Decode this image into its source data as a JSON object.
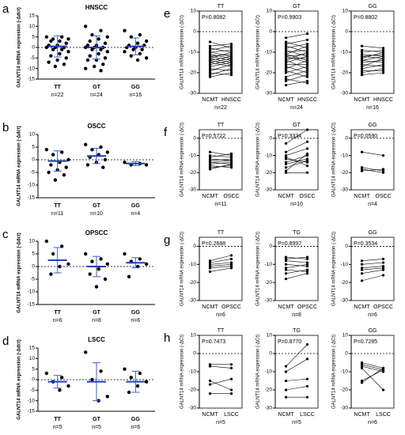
{
  "chart_data": [
    {
      "type": "dot",
      "label": "a",
      "title": "HNSCC",
      "ylabel": "GALNT14 mRNA expression (-Δdct)",
      "categories": [
        "TT",
        "GT",
        "GG"
      ],
      "n_labels": [
        "n=22",
        "n=24",
        "n=16"
      ],
      "points": [
        [
          5,
          5,
          4,
          4,
          3,
          3,
          2,
          1,
          1,
          0,
          0,
          0,
          -1,
          -1,
          -2,
          -3,
          -4,
          -5,
          -6,
          -7,
          -8,
          -9
        ],
        [
          10,
          8,
          6,
          5,
          4,
          3,
          2,
          1,
          1,
          0,
          0,
          0,
          -1,
          -1,
          -2,
          -3,
          -4,
          -5,
          -6,
          -6,
          -8,
          -9,
          -10,
          -11
        ],
        [
          8,
          6,
          5,
          3,
          2,
          1,
          1,
          0,
          0,
          -1,
          -1,
          -2,
          -3,
          -4,
          -5,
          -6
        ]
      ],
      "mean": [
        0.5,
        0,
        0.5
      ],
      "sd": [
        5,
        5.5,
        4
      ],
      "ylim": [
        -15,
        15
      ],
      "yticks": [
        -15,
        -10,
        -5,
        0,
        5,
        10,
        15
      ]
    },
    {
      "type": "dot",
      "label": "b",
      "title": "OSCC",
      "ylabel": "GALNT14 mRNA expression (-Δdct)",
      "categories": [
        "TT",
        "GT",
        "GG"
      ],
      "n_labels": [
        "n=11",
        "n=10",
        "n=4"
      ],
      "points": [
        [
          4,
          3,
          2,
          0,
          -1,
          -2,
          -3,
          -4,
          -5,
          -6,
          -8
        ],
        [
          6,
          5,
          4,
          3,
          2,
          1,
          0,
          -1,
          -2,
          -3
        ],
        [
          -1,
          -1.5,
          -2,
          -2
        ]
      ],
      "mean": [
        -0.5,
        1.5,
        -1.5
      ],
      "sd": [
        4,
        3,
        0.8
      ],
      "ylim": [
        -15,
        10
      ],
      "yticks": [
        -15,
        -10,
        -5,
        0,
        5,
        10
      ]
    },
    {
      "type": "dot",
      "label": "c",
      "title": "OPSCC",
      "ylabel": "GALNT14 mRNA expression (-Δdct)",
      "categories": [
        "TT",
        "GT",
        "GG"
      ],
      "n_labels": [
        "n=6",
        "n=8",
        "n=6"
      ],
      "points": [
        [
          10,
          8,
          5,
          1,
          0,
          -3
        ],
        [
          5,
          3,
          2,
          1,
          -1,
          -3,
          -5,
          -8
        ],
        [
          5,
          3,
          2,
          1,
          0,
          -4
        ]
      ],
      "mean": [
        2.5,
        0,
        1.5
      ],
      "sd": [
        5,
        4,
        2
      ],
      "ylim": [
        -15,
        10
      ],
      "yticks": [
        -15,
        -10,
        -5,
        0,
        5,
        10
      ]
    },
    {
      "type": "dot",
      "label": "d",
      "title": "LSCC",
      "ylabel": "GALNT14 mRNA expression (-Δdct)",
      "categories": [
        "TT",
        "GT",
        "GG"
      ],
      "n_labels": [
        "n=5",
        "n=5",
        "n=6"
      ],
      "points": [
        [
          3,
          1,
          -1,
          -3,
          -5
        ],
        [
          13,
          4,
          0,
          -8,
          -10
        ],
        [
          5,
          3,
          1,
          -1,
          -3,
          -6
        ]
      ],
      "mean": [
        -1,
        -1,
        -1
      ],
      "sd": [
        3,
        9,
        5
      ],
      "ylim": [
        -15,
        15
      ],
      "yticks": [
        -15,
        -10,
        -5,
        0,
        5,
        10,
        15
      ]
    },
    {
      "type": "paired",
      "label": "e",
      "ylabel": "GALNT14 mRNA expression (-ΔCt)",
      "categories": [
        "NCMT",
        "HNSCC"
      ],
      "ylim": [
        -30,
        10
      ],
      "yticks": [
        -30,
        -20,
        -10,
        0,
        10
      ],
      "subplots": [
        {
          "title": "TT",
          "p": "P=0.8082",
          "n": "n=22",
          "ncmt": [
            -5,
            -7,
            -8,
            -9,
            -10,
            -10,
            -11,
            -12,
            -12,
            -13,
            -13,
            -14,
            -14,
            -15,
            -15,
            -16,
            -17,
            -18,
            -19,
            -20,
            -21,
            -22
          ],
          "tumor": [
            -8,
            -6,
            -10,
            -7,
            -12,
            -9,
            -13,
            -11,
            -14,
            -10,
            -15,
            -12,
            -16,
            -13,
            -17,
            -14,
            -15,
            -19,
            -16,
            -21,
            -18,
            -20
          ]
        },
        {
          "title": "GT",
          "p": "P=0.9903",
          "n": "n=24",
          "ncmt": [
            -3,
            -5,
            -6,
            -7,
            -8,
            -9,
            -10,
            -11,
            -11,
            -12,
            -12,
            -13,
            -14,
            -14,
            -15,
            -16,
            -17,
            -18,
            -19,
            -20,
            -22,
            -23,
            -24,
            -26
          ],
          "tumor": [
            -1,
            -8,
            -4,
            -10,
            -6,
            -12,
            -9,
            -14,
            -7,
            -15,
            -11,
            -13,
            -10,
            -18,
            -12,
            -16,
            -20,
            -14,
            -22,
            -17,
            -19,
            -25,
            -21,
            -24
          ]
        },
        {
          "title": "GG",
          "p": "P=0.8802",
          "n": "n=16",
          "ncmt": [
            -7,
            -9,
            -10,
            -11,
            -12,
            -12,
            -13,
            -14,
            -14,
            -15,
            -16,
            -17,
            -18,
            -19,
            -20,
            -21
          ],
          "tumor": [
            -8,
            -10,
            -9,
            -12,
            -11,
            -13,
            -10,
            -15,
            -12,
            -14,
            -17,
            -13,
            -16,
            -19,
            -18,
            -20
          ]
        }
      ]
    },
    {
      "type": "paired",
      "label": "f",
      "ylabel": "GALNT14 mRNA expression (-ΔCt)",
      "categories": [
        "NCMT",
        "OSCC"
      ],
      "ylim": [
        -30,
        5
      ],
      "yticks": [
        -30,
        -20,
        -10,
        0
      ],
      "subplots": [
        {
          "title": "TT",
          "p": "P=0.5722",
          "n": "n=11",
          "ncmt": [
            -8,
            -10,
            -11,
            -12,
            -13,
            -14,
            -14,
            -15,
            -16,
            -17,
            -18
          ],
          "tumor": [
            -10,
            -11,
            -9,
            -13,
            -12,
            -15,
            -13,
            -14,
            -17,
            -16,
            -15
          ]
        },
        {
          "title": "GT",
          "p": "P=0.3334",
          "n": "n=10",
          "ncmt": [
            -3,
            -8,
            -10,
            -12,
            -14,
            -15,
            -17,
            -19,
            -20,
            -11
          ],
          "tumor": [
            5,
            -2,
            -6,
            -14,
            -10,
            -12,
            -13,
            -9,
            -20,
            -16
          ]
        },
        {
          "title": "GG",
          "p": "P=0.0590",
          "n": "n=4",
          "ncmt": [
            -8,
            -17,
            -18,
            -19
          ],
          "tumor": [
            -10,
            -19,
            -20,
            -18
          ]
        }
      ]
    },
    {
      "type": "paired",
      "label": "g",
      "ylabel": "GALNT14 mRNA expression (-ΔCt)",
      "categories": [
        "NCMT",
        "OPSCC"
      ],
      "ylim": [
        -30,
        5
      ],
      "yticks": [
        -30,
        -20,
        -10,
        0
      ],
      "subplots": [
        {
          "title": "TT",
          "p": "P=0.2688",
          "n": "n=6",
          "ncmt": [
            -8,
            -9,
            -10,
            -11,
            -12,
            -14
          ],
          "tumor": [
            -5,
            -7,
            -9,
            -10,
            -11,
            -12
          ]
        },
        {
          "title": "TG",
          "p": "P=0.8997",
          "n": "n=8",
          "ncmt": [
            -6,
            -7,
            -8,
            -10,
            -12,
            -13,
            -15,
            -18
          ],
          "tumor": [
            -7,
            -6,
            -9,
            -11,
            -10,
            -14,
            -13,
            -15
          ]
        },
        {
          "title": "GG",
          "p": "P=0.3534",
          "n": "n=6",
          "ncmt": [
            -8,
            -10,
            -12,
            -13,
            -15,
            -19
          ],
          "tumor": [
            -7,
            -9,
            -11,
            -12,
            -13,
            -16
          ]
        }
      ]
    },
    {
      "type": "paired",
      "label": "h",
      "ylabel": "GALNT14 mRNA expression (-ΔCt)",
      "categories": [
        "NCMT",
        "LSCC"
      ],
      "ylim": [
        -30,
        10
      ],
      "yticks": [
        -30,
        -20,
        -10,
        0,
        10
      ],
      "subplots": [
        {
          "title": "TT",
          "p": "P=0.7473",
          "n": "n=5",
          "ncmt": [
            -6,
            -7,
            -15,
            -17,
            -22
          ],
          "tumor": [
            -6,
            -8,
            -20,
            -14,
            -22
          ]
        },
        {
          "title": "TG",
          "p": "P=0.8770",
          "n": "n=5",
          "ncmt": [
            -7,
            -10,
            -15,
            -20,
            -24
          ],
          "tumor": [
            5,
            -3,
            -14,
            -18,
            -24
          ]
        },
        {
          "title": "GG",
          "p": "P=0.7285",
          "n": "n=6",
          "ncmt": [
            -5,
            -6,
            -7,
            -8,
            -15,
            -16
          ],
          "tumor": [
            -8,
            -9,
            -10,
            -20,
            -9,
            -8
          ]
        }
      ]
    }
  ]
}
